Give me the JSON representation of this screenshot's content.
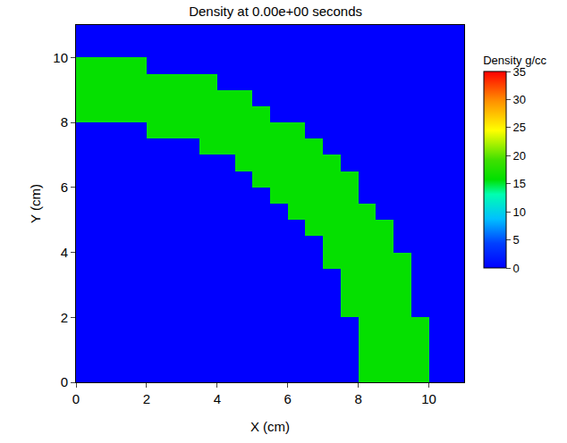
{
  "chart_data": {
    "type": "heatmap",
    "title": "Density at 0.00e+00 seconds",
    "x_label": "X (cm)",
    "y_label": "Y (cm)",
    "xlim": [
      0,
      11
    ],
    "ylim": [
      0,
      11
    ],
    "xticks": [
      0,
      2,
      4,
      6,
      8,
      10
    ],
    "yticks": [
      0,
      2,
      4,
      6,
      8,
      10
    ],
    "grid": false,
    "x": [
      0.25,
      0.75,
      1.25,
      1.75,
      2.25,
      2.75,
      3.25,
      3.75,
      4.25,
      4.75,
      5.25,
      5.75,
      6.25,
      6.75,
      7.25,
      7.75,
      8.25,
      8.75,
      9.25,
      9.75,
      10.25,
      10.75
    ],
    "y": [
      0.25,
      0.75,
      1.25,
      1.75,
      2.25,
      2.75,
      3.25,
      3.75,
      4.25,
      4.75,
      5.25,
      5.75,
      6.25,
      6.75,
      7.25,
      7.75,
      8.25,
      8.75,
      9.25,
      9.75,
      10.25,
      10.75
    ],
    "z": [
      [
        0,
        0,
        0,
        0,
        0,
        0,
        0,
        0,
        0,
        0,
        0,
        0,
        0,
        0,
        0,
        0,
        16,
        16,
        16,
        16,
        0,
        0
      ],
      [
        0,
        0,
        0,
        0,
        0,
        0,
        0,
        0,
        0,
        0,
        0,
        0,
        0,
        0,
        0,
        0,
        16,
        16,
        16,
        16,
        0,
        0
      ],
      [
        0,
        0,
        0,
        0,
        0,
        0,
        0,
        0,
        0,
        0,
        0,
        0,
        0,
        0,
        0,
        0,
        16,
        16,
        16,
        16,
        0,
        0
      ],
      [
        0,
        0,
        0,
        0,
        0,
        0,
        0,
        0,
        0,
        0,
        0,
        0,
        0,
        0,
        0,
        0,
        16,
        16,
        16,
        16,
        0,
        0
      ],
      [
        0,
        0,
        0,
        0,
        0,
        0,
        0,
        0,
        0,
        0,
        0,
        0,
        0,
        0,
        0,
        16,
        16,
        16,
        16,
        0,
        0,
        0
      ],
      [
        0,
        0,
        0,
        0,
        0,
        0,
        0,
        0,
        0,
        0,
        0,
        0,
        0,
        0,
        0,
        16,
        16,
        16,
        16,
        0,
        0,
        0
      ],
      [
        0,
        0,
        0,
        0,
        0,
        0,
        0,
        0,
        0,
        0,
        0,
        0,
        0,
        0,
        0,
        16,
        16,
        16,
        16,
        0,
        0,
        0
      ],
      [
        0,
        0,
        0,
        0,
        0,
        0,
        0,
        0,
        0,
        0,
        0,
        0,
        0,
        0,
        16,
        16,
        16,
        16,
        16,
        0,
        0,
        0
      ],
      [
        0,
        0,
        0,
        0,
        0,
        0,
        0,
        0,
        0,
        0,
        0,
        0,
        0,
        0,
        16,
        16,
        16,
        16,
        0,
        0,
        0,
        0
      ],
      [
        0,
        0,
        0,
        0,
        0,
        0,
        0,
        0,
        0,
        0,
        0,
        0,
        0,
        16,
        16,
        16,
        16,
        16,
        0,
        0,
        0,
        0
      ],
      [
        0,
        0,
        0,
        0,
        0,
        0,
        0,
        0,
        0,
        0,
        0,
        0,
        16,
        16,
        16,
        16,
        16,
        0,
        0,
        0,
        0,
        0
      ],
      [
        0,
        0,
        0,
        0,
        0,
        0,
        0,
        0,
        0,
        0,
        0,
        16,
        16,
        16,
        16,
        16,
        0,
        0,
        0,
        0,
        0,
        0
      ],
      [
        0,
        0,
        0,
        0,
        0,
        0,
        0,
        0,
        0,
        0,
        16,
        16,
        16,
        16,
        16,
        16,
        0,
        0,
        0,
        0,
        0,
        0
      ],
      [
        0,
        0,
        0,
        0,
        0,
        0,
        0,
        0,
        0,
        16,
        16,
        16,
        16,
        16,
        16,
        0,
        0,
        0,
        0,
        0,
        0,
        0
      ],
      [
        0,
        0,
        0,
        0,
        0,
        0,
        0,
        16,
        16,
        16,
        16,
        16,
        16,
        16,
        0,
        0,
        0,
        0,
        0,
        0,
        0,
        0
      ],
      [
        0,
        0,
        0,
        0,
        16,
        16,
        16,
        16,
        16,
        16,
        16,
        16,
        16,
        0,
        0,
        0,
        0,
        0,
        0,
        0,
        0,
        0
      ],
      [
        16,
        16,
        16,
        16,
        16,
        16,
        16,
        16,
        16,
        16,
        16,
        0,
        0,
        0,
        0,
        0,
        0,
        0,
        0,
        0,
        0,
        0
      ],
      [
        16,
        16,
        16,
        16,
        16,
        16,
        16,
        16,
        16,
        16,
        0,
        0,
        0,
        0,
        0,
        0,
        0,
        0,
        0,
        0,
        0,
        0
      ],
      [
        16,
        16,
        16,
        16,
        16,
        16,
        16,
        16,
        0,
        0,
        0,
        0,
        0,
        0,
        0,
        0,
        0,
        0,
        0,
        0,
        0,
        0
      ],
      [
        16,
        16,
        16,
        16,
        0,
        0,
        0,
        0,
        0,
        0,
        0,
        0,
        0,
        0,
        0,
        0,
        0,
        0,
        0,
        0,
        0,
        0
      ],
      [
        0,
        0,
        0,
        0,
        0,
        0,
        0,
        0,
        0,
        0,
        0,
        0,
        0,
        0,
        0,
        0,
        0,
        0,
        0,
        0,
        0,
        0
      ],
      [
        0,
        0,
        0,
        0,
        0,
        0,
        0,
        0,
        0,
        0,
        0,
        0,
        0,
        0,
        0,
        0,
        0,
        0,
        0,
        0,
        0,
        0
      ]
    ],
    "colorbar": {
      "title": "Density g/cc",
      "range": [
        0,
        35
      ],
      "ticks": [
        0,
        5,
        10,
        15,
        20,
        25,
        30,
        35
      ]
    }
  }
}
